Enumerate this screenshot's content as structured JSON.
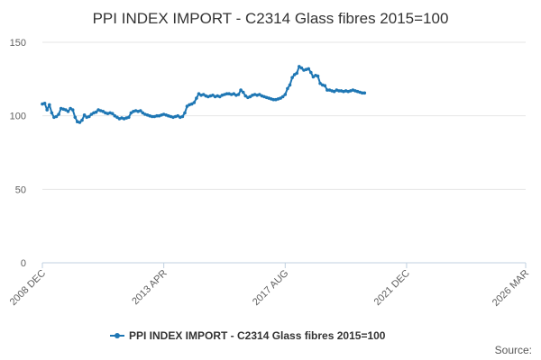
{
  "source_label": "Source:",
  "colors": {
    "series": "#1f77b4",
    "grid": "#e6e6e6",
    "axis": "#c0d0e0",
    "text": "#333333",
    "tick_text": "#606060"
  },
  "chart_data": {
    "type": "line",
    "title": "PPI INDEX IMPORT - C2314 Glass fibres 2015=100",
    "xlabel": "",
    "ylabel": "",
    "ylim": [
      0,
      150
    ],
    "yticks": [
      0,
      50,
      100,
      150
    ],
    "xlim": [
      "2008-12",
      "2026-03"
    ],
    "xticks": [
      {
        "date": "2008-12",
        "label": "2008 DEC"
      },
      {
        "date": "2013-04",
        "label": "2013 APR"
      },
      {
        "date": "2017-08",
        "label": "2017 AUG"
      },
      {
        "date": "2021-12",
        "label": "2021 DEC"
      },
      {
        "date": "2026-03",
        "label": "2026 MAR"
      }
    ],
    "grid": true,
    "legend": "bottom-center",
    "series": [
      {
        "name": "PPI INDEX IMPORT - C2314 Glass fibres 2015=100",
        "marker": "circle",
        "points": [
          [
            "2008-12",
            108
          ],
          [
            "2009-01",
            108.5
          ],
          [
            "2009-02",
            104
          ],
          [
            "2009-03",
            107.5
          ],
          [
            "2009-04",
            102
          ],
          [
            "2009-05",
            99
          ],
          [
            "2009-06",
            99.5
          ],
          [
            "2009-07",
            101
          ],
          [
            "2009-08",
            105
          ],
          [
            "2009-09",
            104.5
          ],
          [
            "2009-10",
            104
          ],
          [
            "2009-11",
            103
          ],
          [
            "2009-12",
            105
          ],
          [
            "2010-01",
            104
          ],
          [
            "2010-02",
            99
          ],
          [
            "2010-03",
            96
          ],
          [
            "2010-04",
            95.5
          ],
          [
            "2010-05",
            97
          ],
          [
            "2010-06",
            100.5
          ],
          [
            "2010-07",
            99
          ],
          [
            "2010-08",
            99.5
          ],
          [
            "2010-09",
            101
          ],
          [
            "2010-10",
            102
          ],
          [
            "2010-11",
            102.5
          ],
          [
            "2010-12",
            104
          ],
          [
            "2011-01",
            103.5
          ],
          [
            "2011-02",
            103
          ],
          [
            "2011-03",
            102
          ],
          [
            "2011-04",
            101.5
          ],
          [
            "2011-05",
            102
          ],
          [
            "2011-06",
            101.5
          ],
          [
            "2011-07",
            100
          ],
          [
            "2011-08",
            99
          ],
          [
            "2011-09",
            98
          ],
          [
            "2011-10",
            98.5
          ],
          [
            "2011-11",
            98
          ],
          [
            "2011-12",
            98.5
          ],
          [
            "2012-01",
            99
          ],
          [
            "2012-02",
            102
          ],
          [
            "2012-03",
            103
          ],
          [
            "2012-04",
            103.5
          ],
          [
            "2012-05",
            103
          ],
          [
            "2012-06",
            103.5
          ],
          [
            "2012-07",
            102
          ],
          [
            "2012-08",
            101
          ],
          [
            "2012-09",
            100.5
          ],
          [
            "2012-10",
            100
          ],
          [
            "2012-11",
            99.5
          ],
          [
            "2012-12",
            99.5
          ],
          [
            "2013-01",
            100
          ],
          [
            "2013-02",
            100
          ],
          [
            "2013-03",
            100.5
          ],
          [
            "2013-04",
            101
          ],
          [
            "2013-05",
            100.5
          ],
          [
            "2013-06",
            100
          ],
          [
            "2013-07",
            99.5
          ],
          [
            "2013-08",
            99
          ],
          [
            "2013-09",
            99.5
          ],
          [
            "2013-10",
            100
          ],
          [
            "2013-11",
            99
          ],
          [
            "2013-12",
            99.5
          ],
          [
            "2014-01",
            102
          ],
          [
            "2014-02",
            106.5
          ],
          [
            "2014-03",
            107.5
          ],
          [
            "2014-04",
            108
          ],
          [
            "2014-05",
            109
          ],
          [
            "2014-06",
            112
          ],
          [
            "2014-07",
            115
          ],
          [
            "2014-08",
            114
          ],
          [
            "2014-09",
            114.5
          ],
          [
            "2014-10",
            113.5
          ],
          [
            "2014-11",
            113
          ],
          [
            "2014-12",
            113.5
          ],
          [
            "2015-01",
            114
          ],
          [
            "2015-02",
            113
          ],
          [
            "2015-03",
            113.5
          ],
          [
            "2015-04",
            113
          ],
          [
            "2015-05",
            114
          ],
          [
            "2015-06",
            114.5
          ],
          [
            "2015-07",
            115
          ],
          [
            "2015-08",
            115
          ],
          [
            "2015-09",
            114.5
          ],
          [
            "2015-10",
            115
          ],
          [
            "2015-11",
            114
          ],
          [
            "2015-12",
            114.5
          ],
          [
            "2016-01",
            117.5
          ],
          [
            "2016-02",
            116
          ],
          [
            "2016-03",
            113.5
          ],
          [
            "2016-04",
            112.5
          ],
          [
            "2016-05",
            113
          ],
          [
            "2016-06",
            114
          ],
          [
            "2016-07",
            114.5
          ],
          [
            "2016-08",
            114
          ],
          [
            "2016-09",
            114.5
          ],
          [
            "2016-10",
            113.5
          ],
          [
            "2016-11",
            113
          ],
          [
            "2016-12",
            112.5
          ],
          [
            "2017-01",
            112
          ],
          [
            "2017-02",
            111.5
          ],
          [
            "2017-03",
            111
          ],
          [
            "2017-04",
            111
          ],
          [
            "2017-05",
            111.5
          ],
          [
            "2017-06",
            112
          ],
          [
            "2017-07",
            113
          ],
          [
            "2017-08",
            114.5
          ],
          [
            "2017-09",
            118.5
          ],
          [
            "2017-10",
            121
          ],
          [
            "2017-11",
            126
          ],
          [
            "2017-12",
            128
          ],
          [
            "2018-01",
            129
          ],
          [
            "2018-02",
            133.5
          ],
          [
            "2018-03",
            132.5
          ],
          [
            "2018-04",
            131
          ],
          [
            "2018-05",
            131.5
          ],
          [
            "2018-06",
            132
          ],
          [
            "2018-07",
            129.5
          ],
          [
            "2018-08",
            126.5
          ],
          [
            "2018-09",
            127.5
          ],
          [
            "2018-10",
            127
          ],
          [
            "2018-11",
            122
          ],
          [
            "2018-12",
            121
          ],
          [
            "2019-01",
            120.5
          ],
          [
            "2019-02",
            117.5
          ],
          [
            "2019-03",
            117.5
          ],
          [
            "2019-04",
            117
          ],
          [
            "2019-05",
            116.5
          ],
          [
            "2019-06",
            117.5
          ],
          [
            "2019-07",
            117
          ],
          [
            "2019-08",
            117
          ],
          [
            "2019-09",
            116.5
          ],
          [
            "2019-10",
            117
          ],
          [
            "2019-11",
            116.5
          ],
          [
            "2019-12",
            117
          ],
          [
            "2020-01",
            117.5
          ],
          [
            "2020-02",
            117
          ],
          [
            "2020-03",
            116.5
          ],
          [
            "2020-04",
            116
          ],
          [
            "2020-05",
            115.5
          ],
          [
            "2020-06",
            115.5
          ]
        ]
      }
    ]
  }
}
